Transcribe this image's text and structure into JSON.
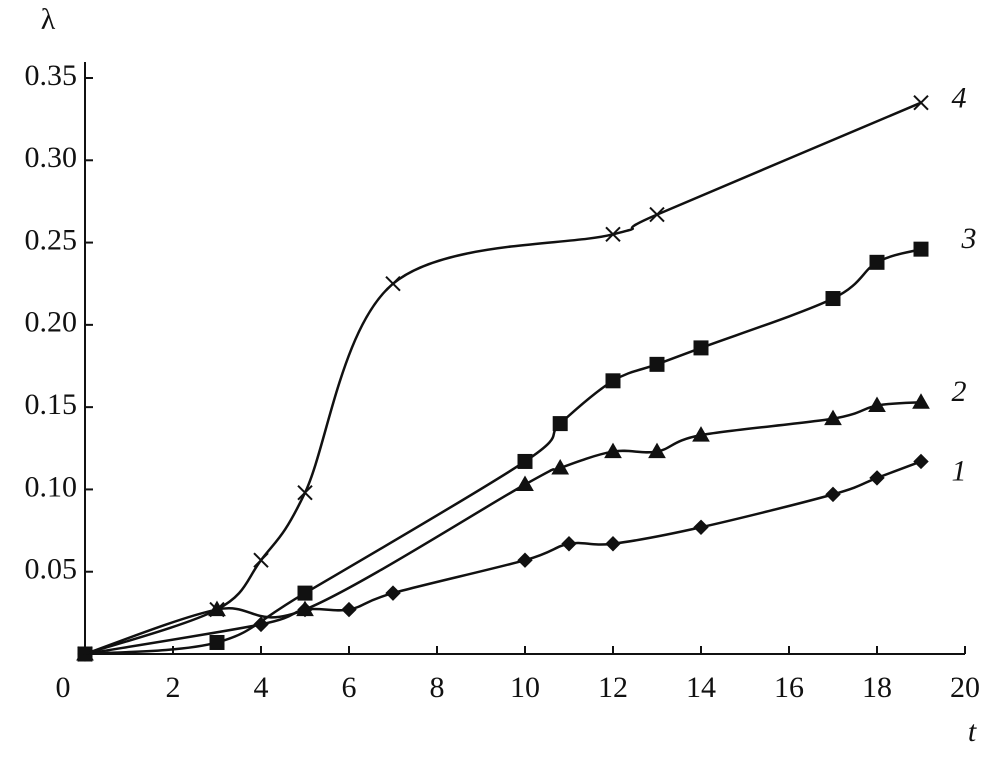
{
  "chart_data": {
    "type": "line",
    "xlabel": "t",
    "ylabel": "λ",
    "xlim": [
      0,
      20
    ],
    "xticks": [
      0,
      2,
      4,
      6,
      8,
      10,
      12,
      14,
      16,
      18,
      20
    ],
    "ylim": [
      0,
      0.35
    ],
    "yticks": [
      0.05,
      {
        "value": 0.1,
        "label": "0.10"
      },
      0.15,
      {
        "value": 0.2,
        "label": "0.20"
      },
      0.25,
      {
        "value": 0.3,
        "label": "0.30"
      },
      0.35
    ],
    "series": [
      {
        "name": "1",
        "color": "#111111",
        "marker": "diamond",
        "x": [
          0,
          4,
          5,
          6,
          7,
          10,
          11,
          12,
          14,
          17,
          18,
          19
        ],
        "values": [
          0,
          0.018,
          0.027,
          0.027,
          0.037,
          0.057,
          0.067,
          0.067,
          0.077,
          0.097,
          0.107,
          0.117
        ]
      },
      {
        "name": "2",
        "color": "#111111",
        "marker": "triangle",
        "x": [
          0,
          3,
          5,
          10,
          10.8,
          12,
          13,
          14,
          17,
          18,
          19
        ],
        "values": [
          0,
          0.027,
          0.027,
          0.103,
          0.113,
          0.123,
          0.123,
          0.133,
          0.143,
          0.151,
          0.153
        ]
      },
      {
        "name": "3",
        "color": "#111111",
        "marker": "square",
        "x": [
          0,
          3,
          5,
          10,
          10.8,
          12,
          13,
          14,
          17,
          18,
          19
        ],
        "values": [
          0,
          0.007,
          0.037,
          0.117,
          0.14,
          0.166,
          0.176,
          0.186,
          0.216,
          0.238,
          0.246
        ]
      },
      {
        "name": "4",
        "color": "#111111",
        "marker": "cross",
        "x": [
          0,
          3,
          4,
          5,
          7,
          12,
          13,
          19
        ],
        "values": [
          0,
          0.027,
          0.057,
          0.098,
          0.225,
          0.255,
          0.267,
          0.335
        ]
      }
    ]
  }
}
